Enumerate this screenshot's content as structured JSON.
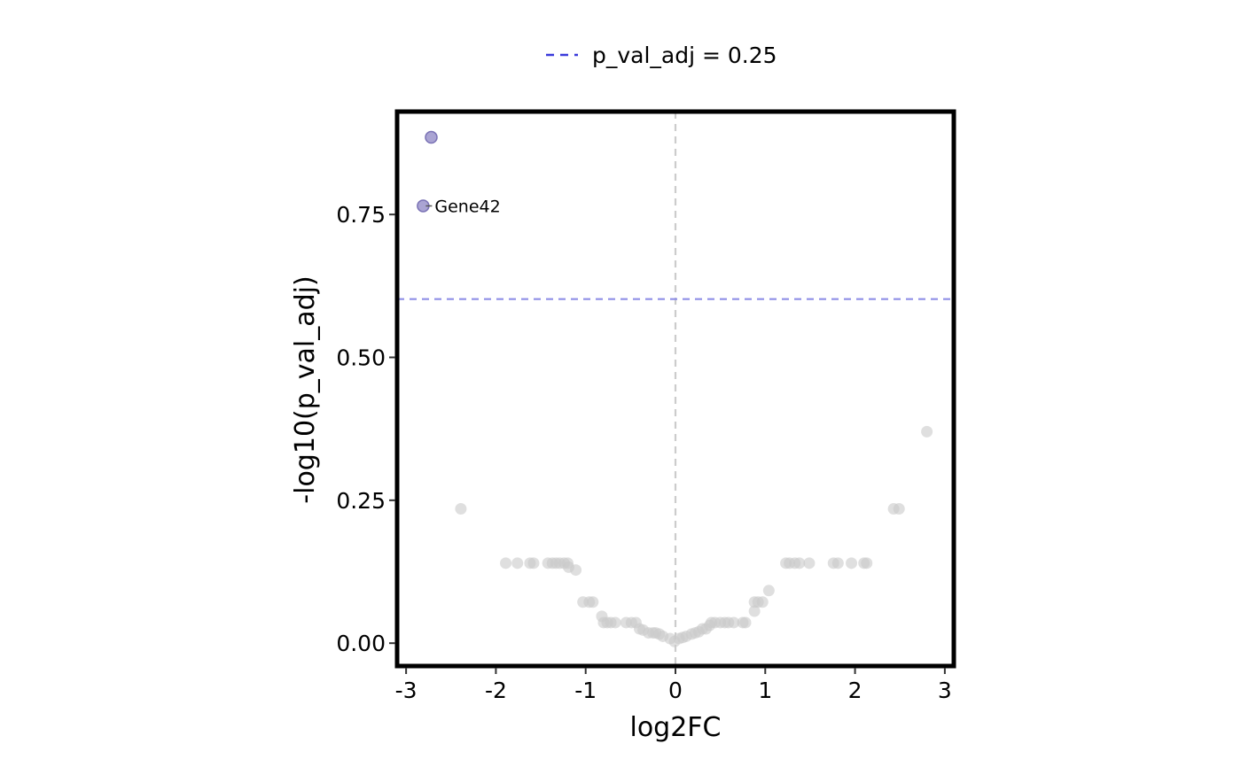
{
  "chart_data": {
    "type": "scatter",
    "xlabel": "log2FC",
    "ylabel": "-log10(p_val_adj)",
    "xlim": [
      -3.1,
      3.1
    ],
    "ylim": [
      -0.04,
      0.93
    ],
    "xticks": [
      -3,
      -2,
      -1,
      0,
      1,
      2,
      3
    ],
    "xtick_labels": [
      "-3",
      "-2",
      "-1",
      "0",
      "1",
      "2",
      "3"
    ],
    "yticks": [
      0,
      0.25,
      0.5,
      0.75
    ],
    "ytick_labels": [
      "0.00",
      "0.25",
      "0.50",
      "0.75"
    ],
    "grid": false,
    "legend": {
      "position": "top",
      "label": "p_val_adj = 0.25",
      "line_style": "dashed",
      "color": "#3b3bdb"
    },
    "threshold_y": 0.602,
    "vline_x": 0,
    "colors": {
      "significant": "#8e86c4",
      "not_significant": "#c9c9c9",
      "threshold_line": "#8f8fe6",
      "zero_line": "#cccccc"
    },
    "annotations": [
      {
        "label": "Gene42",
        "x": -2.81,
        "y": 0.765
      }
    ],
    "points": [
      {
        "x": -2.72,
        "y": 0.885,
        "sig": true
      },
      {
        "x": -2.81,
        "y": 0.765,
        "sig": true
      },
      {
        "x": 2.8,
        "y": 0.37,
        "sig": false
      },
      {
        "x": -2.39,
        "y": 0.235,
        "sig": false
      },
      {
        "x": 2.43,
        "y": 0.235,
        "sig": false
      },
      {
        "x": 2.49,
        "y": 0.235,
        "sig": false
      },
      {
        "x": -1.89,
        "y": 0.14,
        "sig": false
      },
      {
        "x": -1.76,
        "y": 0.14,
        "sig": false
      },
      {
        "x": -1.62,
        "y": 0.14,
        "sig": false
      },
      {
        "x": -1.58,
        "y": 0.14,
        "sig": false
      },
      {
        "x": -1.42,
        "y": 0.14,
        "sig": false
      },
      {
        "x": -1.37,
        "y": 0.14,
        "sig": false
      },
      {
        "x": -1.33,
        "y": 0.14,
        "sig": false
      },
      {
        "x": -1.29,
        "y": 0.14,
        "sig": false
      },
      {
        "x": -1.24,
        "y": 0.14,
        "sig": false
      },
      {
        "x": -1.2,
        "y": 0.14,
        "sig": false
      },
      {
        "x": -1.19,
        "y": 0.133,
        "sig": false
      },
      {
        "x": -1.11,
        "y": 0.128,
        "sig": false
      },
      {
        "x": 1.23,
        "y": 0.14,
        "sig": false
      },
      {
        "x": 1.27,
        "y": 0.14,
        "sig": false
      },
      {
        "x": 1.33,
        "y": 0.14,
        "sig": false
      },
      {
        "x": 1.38,
        "y": 0.14,
        "sig": false
      },
      {
        "x": 1.49,
        "y": 0.14,
        "sig": false
      },
      {
        "x": 1.76,
        "y": 0.14,
        "sig": false
      },
      {
        "x": 1.81,
        "y": 0.14,
        "sig": false
      },
      {
        "x": 1.96,
        "y": 0.14,
        "sig": false
      },
      {
        "x": 2.1,
        "y": 0.14,
        "sig": false
      },
      {
        "x": 2.13,
        "y": 0.14,
        "sig": false
      },
      {
        "x": 1.04,
        "y": 0.092,
        "sig": false
      },
      {
        "x": -1.03,
        "y": 0.072,
        "sig": false
      },
      {
        "x": -0.96,
        "y": 0.072,
        "sig": false
      },
      {
        "x": -0.92,
        "y": 0.072,
        "sig": false
      },
      {
        "x": 0.88,
        "y": 0.072,
        "sig": false
      },
      {
        "x": 0.92,
        "y": 0.072,
        "sig": false
      },
      {
        "x": 0.97,
        "y": 0.072,
        "sig": false
      },
      {
        "x": 0.88,
        "y": 0.056,
        "sig": false
      },
      {
        "x": -0.82,
        "y": 0.047,
        "sig": false
      },
      {
        "x": -0.8,
        "y": 0.036,
        "sig": false
      },
      {
        "x": -0.76,
        "y": 0.036,
        "sig": false
      },
      {
        "x": -0.72,
        "y": 0.036,
        "sig": false
      },
      {
        "x": -0.67,
        "y": 0.036,
        "sig": false
      },
      {
        "x": -0.55,
        "y": 0.036,
        "sig": false
      },
      {
        "x": -0.49,
        "y": 0.036,
        "sig": false
      },
      {
        "x": -0.44,
        "y": 0.036,
        "sig": false
      },
      {
        "x": 0.4,
        "y": 0.036,
        "sig": false
      },
      {
        "x": 0.44,
        "y": 0.036,
        "sig": false
      },
      {
        "x": 0.5,
        "y": 0.036,
        "sig": false
      },
      {
        "x": 0.55,
        "y": 0.036,
        "sig": false
      },
      {
        "x": 0.59,
        "y": 0.036,
        "sig": false
      },
      {
        "x": 0.65,
        "y": 0.036,
        "sig": false
      },
      {
        "x": 0.75,
        "y": 0.036,
        "sig": false
      },
      {
        "x": 0.78,
        "y": 0.036,
        "sig": false
      },
      {
        "x": 0.38,
        "y": 0.031,
        "sig": false
      },
      {
        "x": -0.4,
        "y": 0.025,
        "sig": false
      },
      {
        "x": 0.3,
        "y": 0.025,
        "sig": false
      },
      {
        "x": 0.34,
        "y": 0.025,
        "sig": false
      },
      {
        "x": -0.36,
        "y": 0.023,
        "sig": false
      },
      {
        "x": -0.3,
        "y": 0.018,
        "sig": false
      },
      {
        "x": -0.25,
        "y": 0.018,
        "sig": false
      },
      {
        "x": -0.22,
        "y": 0.018,
        "sig": false
      },
      {
        "x": -0.18,
        "y": 0.016,
        "sig": false
      },
      {
        "x": 0.18,
        "y": 0.016,
        "sig": false
      },
      {
        "x": 0.22,
        "y": 0.018,
        "sig": false
      },
      {
        "x": 0.26,
        "y": 0.02,
        "sig": false
      },
      {
        "x": -0.14,
        "y": 0.012,
        "sig": false
      },
      {
        "x": 0.12,
        "y": 0.012,
        "sig": false
      },
      {
        "x": 0.08,
        "y": 0.01,
        "sig": false
      },
      {
        "x": -0.06,
        "y": 0.008,
        "sig": false
      },
      {
        "x": 0.04,
        "y": 0.008,
        "sig": false
      },
      {
        "x": -0.01,
        "y": 0.003,
        "sig": false
      }
    ]
  }
}
